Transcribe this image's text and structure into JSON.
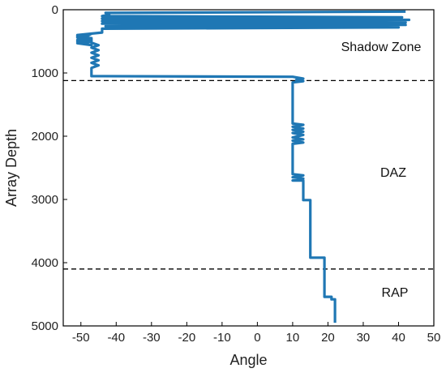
{
  "chart_data": {
    "type": "line",
    "title": "",
    "xlabel": "Angle",
    "ylabel": "Array Depth",
    "xlim": [
      -55,
      50
    ],
    "ylim": [
      0,
      5000
    ],
    "y_inverted": true,
    "grid": false,
    "xticks": [
      -50,
      -40,
      -30,
      -20,
      -10,
      0,
      10,
      20,
      30,
      40,
      50
    ],
    "yticks": [
      0,
      1000,
      2000,
      3000,
      4000,
      5000
    ],
    "line_color": "#1f77b4",
    "series": [
      {
        "x": [
          42,
          -43,
          -42,
          -44,
          41,
          -44,
          43,
          -44,
          42,
          -44,
          42,
          -43,
          40,
          -44,
          -44,
          -51,
          -51,
          -47,
          -51,
          -47,
          -51,
          -47,
          -51,
          -47,
          -51,
          -47,
          -47,
          -45,
          -47,
          -45,
          -47,
          -45,
          -47,
          -45,
          -47,
          -45,
          -47,
          -47,
          10,
          13,
          11,
          13,
          10,
          10,
          13,
          10,
          13,
          10,
          13,
          10,
          13,
          10,
          13,
          10,
          13,
          10,
          10,
          13,
          10,
          13,
          10,
          13,
          13,
          15,
          15,
          19,
          19,
          21,
          21,
          22,
          22
        ],
        "y": [
          30,
          50,
          80,
          100,
          120,
          140,
          160,
          180,
          200,
          220,
          240,
          260,
          280,
          300,
          360,
          400,
          430,
          450,
          480,
          500,
          530,
          560,
          500,
          380,
          440,
          460,
          520,
          560,
          600,
          640,
          680,
          720,
          760,
          800,
          840,
          880,
          920,
          1050,
          1060,
          1090,
          1110,
          1130,
          1150,
          1800,
          1820,
          1850,
          1880,
          1900,
          1930,
          1950,
          1980,
          2020,
          2050,
          2070,
          2100,
          2120,
          2600,
          2620,
          2650,
          2670,
          2700,
          2700,
          3010,
          3010,
          3920,
          3920,
          4540,
          4540,
          4580,
          4580,
          4950
        ]
      }
    ],
    "hlines": [
      1120,
      4100
    ],
    "zone_labels": [
      "Shadow Zone",
      "DAZ",
      "RAP"
    ]
  }
}
